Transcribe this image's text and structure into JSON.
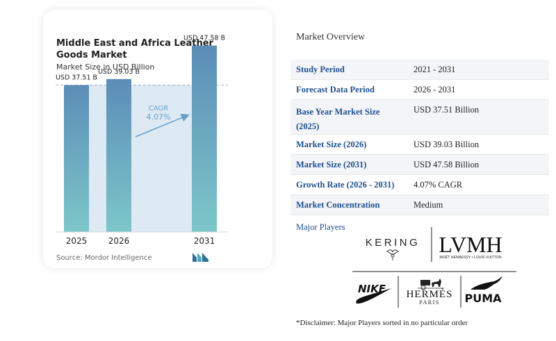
{
  "chart": {
    "title": "Middle East and Africa Leather Goods Market",
    "subtitle": "Market Size in USD Billion",
    "source": "Source: Mordor Intelligence",
    "cagr_label": "CAGR",
    "cagr_value": "4.07%"
  },
  "chart_data": {
    "type": "bar",
    "title": "Middle East and Africa Leather Goods Market",
    "subtitle": "Market Size in USD Billion",
    "categories": [
      "2025",
      "2026",
      "2031"
    ],
    "values": [
      37.51,
      39.03,
      47.58
    ],
    "data_labels": [
      "USD 37.51 B",
      "USD 39.03 B",
      "USD 47.58 B"
    ],
    "annotation": "CAGR 4.07%",
    "ylim": [
      0,
      50
    ],
    "grid": false
  },
  "overview": {
    "title": "Market Overview",
    "rows": [
      {
        "key": "Study Period",
        "value": "2021 - 2031"
      },
      {
        "key": "Forecast Data Period",
        "value": "2026 - 2031"
      },
      {
        "key": "Base Year Market Size (2025)",
        "value": "USD 37.51 Billion"
      },
      {
        "key": "Market Size (2026)",
        "value": "USD 39.03 Billion"
      },
      {
        "key": "Market Size (2031)",
        "value": "USD 47.58 Billion"
      },
      {
        "key": "Growth Rate (2026 - 2031)",
        "value": "4.07% CAGR"
      },
      {
        "key": "Market Concentration",
        "value": "Medium"
      }
    ],
    "players_label": "Major Players",
    "players": [
      {
        "name": "KERING",
        "logo": "kering-logo"
      },
      {
        "name": "LVMH",
        "logo": "lvmh-logo",
        "tagline": "MOËT HENNESSY • LOUIS VUITTON"
      },
      {
        "name": "NIKE",
        "logo": "nike-swoosh-logo"
      },
      {
        "name": "HERMÈS",
        "logo": "hermes-logo",
        "tagline": "PARIS"
      },
      {
        "name": "PUMA",
        "logo": "puma-logo"
      }
    ],
    "disclaimer": "*Disclaimer: Major Players sorted in no particular order"
  },
  "colors": {
    "bar_top": "#5b8db8",
    "bar_bottom": "#7cc7c9",
    "band": "#dde9f3",
    "accent": "#1d4f91",
    "cagr": "#6a9fc2"
  }
}
